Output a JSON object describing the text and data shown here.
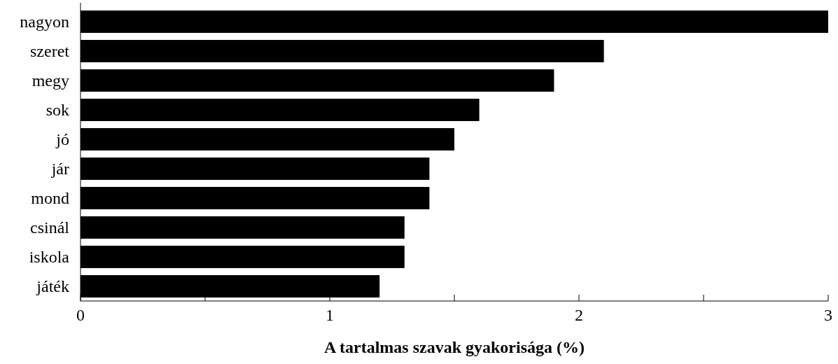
{
  "chart_data": {
    "type": "bar",
    "orientation": "horizontal",
    "xlabel": "A tartalmas szavak gyakorisága (%)",
    "categories": [
      "nagyon",
      "szeret",
      "megy",
      "sok",
      "jó",
      "jár",
      "mond",
      "csinál",
      "iskola",
      "játék"
    ],
    "values": [
      3.0,
      2.1,
      1.9,
      1.6,
      1.5,
      1.4,
      1.4,
      1.3,
      1.3,
      1.2
    ],
    "color": "#000000",
    "xlim": [
      0,
      3
    ],
    "xticks": [
      0,
      {
        "value": 0.5,
        "label": null
      },
      1,
      {
        "value": 1.5,
        "label": null
      },
      2,
      {
        "value": 2.5,
        "label": null
      },
      3
    ],
    "grid": false
  }
}
